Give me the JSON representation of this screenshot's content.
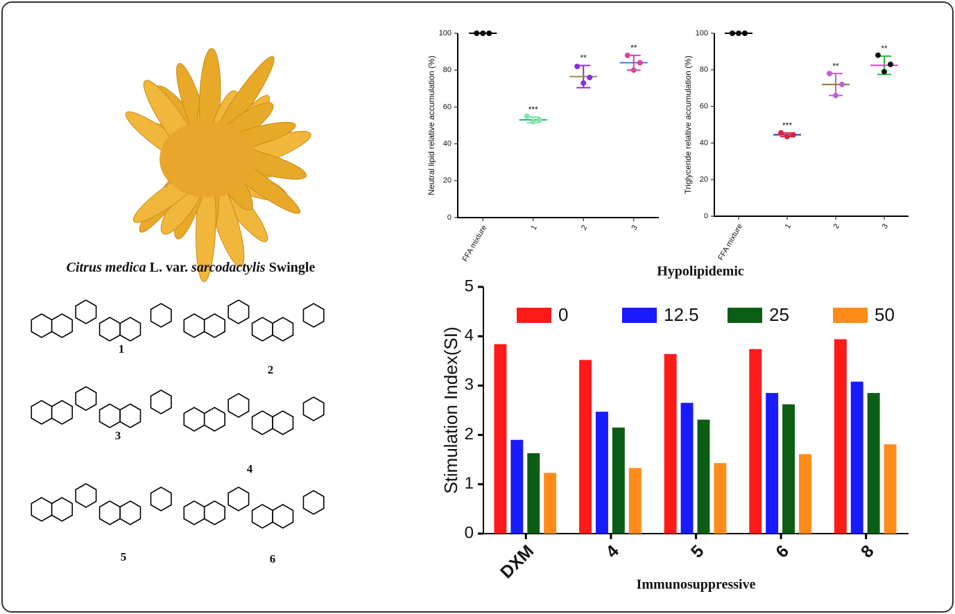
{
  "caption_parts": [
    "Citrus medica",
    "L. var.",
    "sarcodactylis",
    "Swingle"
  ],
  "compound_numbers": [
    "1",
    "2",
    "3",
    "4",
    "5",
    "6"
  ],
  "section_label": "Hypolipidemic",
  "chart_data": [
    {
      "type": "dot",
      "y_label": "Neutral lipid relative accumulation (%)",
      "categories": [
        "FFA mixture",
        "1",
        "2",
        "3"
      ],
      "points": [
        [
          100,
          100,
          100
        ],
        [
          55,
          52,
          53
        ],
        [
          82,
          73,
          76
        ],
        [
          88,
          80,
          84
        ]
      ],
      "values": [
        100,
        53,
        76.5,
        84
      ],
      "errors": [
        0,
        1.5,
        6,
        4
      ],
      "annotations": [
        null,
        "***",
        "**",
        "**"
      ],
      "colors": [
        "#000000",
        "#7ee8a6",
        "#8b2be2",
        "#e040a0"
      ],
      "mean_colors": [
        "#000000",
        "#33aa88",
        "#9a8a3a",
        "#4a70e0"
      ],
      "error_colors": [
        "#000000",
        "#7ee8a6",
        "#8b2be2",
        "#e040a0"
      ],
      "ylim": [
        0,
        100
      ],
      "yticks": [
        0,
        20,
        40,
        60,
        80,
        100
      ]
    },
    {
      "type": "dot",
      "y_label": "Triglyceride relative accumulation (%)",
      "categories": [
        "FFA mixture",
        "1",
        "2",
        "3"
      ],
      "points": [
        [
          100,
          100,
          100
        ],
        [
          45.5,
          43.5,
          44.5
        ],
        [
          78,
          66,
          72
        ],
        [
          88,
          79,
          83
        ]
      ],
      "values": [
        100,
        44.5,
        72,
        82.5
      ],
      "errors": [
        0,
        1,
        6,
        5
      ],
      "annotations": [
        null,
        "***",
        "**",
        "**"
      ],
      "colors": [
        "#000000",
        "#e02040",
        "#c060d0",
        "#111111"
      ],
      "mean_colors": [
        "#000000",
        "#2030c0",
        "#8a7a30",
        "#e040c0"
      ],
      "error_colors": [
        "#000000",
        "#e02040",
        "#c060d0",
        "#20c040"
      ],
      "ylim": [
        0,
        100
      ],
      "yticks": [
        0,
        20,
        40,
        60,
        80,
        100
      ]
    },
    {
      "type": "bar",
      "y_label": "Stimulation Index(SI)",
      "x_label": "Immunosuppressive",
      "categories": [
        "DXM",
        "4",
        "5",
        "6",
        "8"
      ],
      "series": [
        {
          "name": "0",
          "color": "#ff1a1a",
          "values": [
            3.78,
            3.48,
            3.6,
            3.67,
            3.88
          ],
          "errors": [
            0.06,
            0.04,
            0.04,
            0.07,
            0.06
          ]
        },
        {
          "name": "12.5",
          "color": "#1a1aff",
          "values": [
            1.86,
            2.38,
            2.58,
            2.8,
            3.0
          ],
          "errors": [
            0.04,
            0.09,
            0.07,
            0.05,
            0.08
          ]
        },
        {
          "name": "25",
          "color": "#0b5e13",
          "values": [
            1.58,
            2.13,
            2.27,
            2.58,
            2.72
          ],
          "errors": [
            0.05,
            0.02,
            0.04,
            0.04,
            0.13
          ]
        },
        {
          "name": "50",
          "color": "#ff8c1a",
          "values": [
            1.17,
            1.3,
            1.41,
            1.48,
            1.75
          ],
          "errors": [
            0.06,
            0.03,
            0.02,
            0.13,
            0.06
          ]
        }
      ],
      "ylim": [
        0,
        5
      ],
      "yticks": [
        0,
        1,
        2,
        3,
        4,
        5
      ]
    }
  ]
}
